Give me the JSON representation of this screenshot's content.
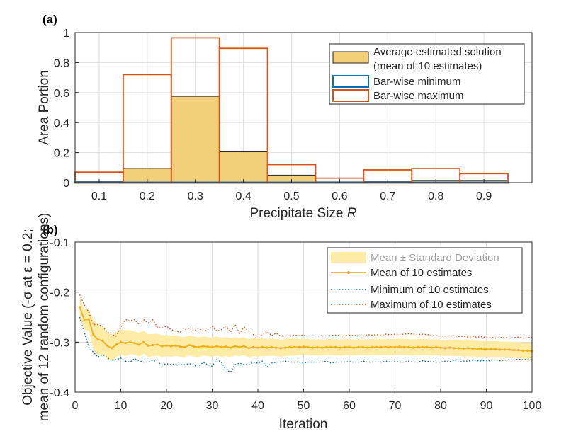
{
  "chart_data": [
    {
      "panel": "(a)",
      "type": "bar",
      "xlabel_prefix": "Precipitate Size ",
      "xlabel_var": "R",
      "ylabel": "Area Portion",
      "xlim": [
        0.05,
        1.0
      ],
      "ylim": [
        0,
        1
      ],
      "xticks": [
        0.1,
        0.2,
        0.3,
        0.4,
        0.5,
        0.6,
        0.7,
        0.8,
        0.9
      ],
      "xtick_labels": [
        "0.1",
        "0.2",
        "0.3",
        "0.4",
        "0.5",
        "0.6",
        "0.7",
        "0.8",
        "0.9"
      ],
      "yticks": [
        0,
        0.2,
        0.4,
        0.6,
        0.8,
        1
      ],
      "ytick_labels": [
        "0",
        "0.2",
        "0.4",
        "0.6",
        "0.8",
        "1"
      ],
      "categories": [
        0.1,
        0.2,
        0.3,
        0.4,
        0.5,
        0.6,
        0.7,
        0.8,
        0.9
      ],
      "bin_width": 0.1,
      "series": [
        {
          "name": "Average estimated solution (mean of 10 estimates)",
          "style": "filled",
          "values": [
            0.01,
            0.095,
            0.575,
            0.205,
            0.05,
            0.005,
            0.01,
            0.015,
            0.015
          ]
        },
        {
          "name": "Bar-wise minimum",
          "style": "outline",
          "values": [
            0.0,
            0.0,
            0.0,
            0.0,
            0.0,
            0.0,
            0.0,
            0.0,
            0.0
          ]
        },
        {
          "name": "Bar-wise maximum",
          "style": "outline",
          "values": [
            0.07,
            0.72,
            0.965,
            0.895,
            0.12,
            0.03,
            0.085,
            0.095,
            0.06
          ]
        }
      ],
      "legend": {
        "position": "top-right",
        "entries": [
          {
            "label": "Average estimated solution",
            "label2": "(mean of 10 estimates)"
          },
          {
            "label": "Bar-wise minimum"
          },
          {
            "label": "Bar-wise maximum"
          }
        ]
      },
      "colors": {
        "avg_fill": "#f2d07a",
        "avg_edge": "#262626",
        "min": "#0072bd",
        "max": "#d95319"
      }
    },
    {
      "panel": "(b)",
      "type": "line",
      "xlabel": "Iteration",
      "ylabel_line1": "Objective Value (-σ at ε = 0.2;",
      "ylabel_line2": "mean of 12 random configurations)",
      "xlim": [
        0,
        100
      ],
      "ylim": [
        -0.4,
        -0.1
      ],
      "xticks": [
        0,
        10,
        20,
        30,
        40,
        50,
        60,
        70,
        80,
        90,
        100
      ],
      "xtick_labels": [
        "0",
        "10",
        "20",
        "30",
        "40",
        "50",
        "60",
        "70",
        "80",
        "90",
        "100"
      ],
      "yticks": [
        -0.4,
        -0.3,
        -0.2,
        -0.1
      ],
      "ytick_labels": [
        "-0.4",
        "-0.3",
        "-0.2",
        "-0.1"
      ],
      "x": [
        1,
        2,
        3,
        4,
        5,
        6,
        7,
        8,
        9,
        10,
        11,
        12,
        13,
        14,
        15,
        16,
        17,
        18,
        19,
        20,
        21,
        22,
        23,
        24,
        25,
        26,
        27,
        28,
        29,
        30,
        31,
        32,
        33,
        34,
        35,
        36,
        37,
        38,
        39,
        40,
        41,
        42,
        43,
        44,
        45,
        46,
        47,
        48,
        49,
        50,
        51,
        52,
        53,
        54,
        55,
        56,
        57,
        58,
        59,
        60,
        61,
        62,
        63,
        64,
        65,
        66,
        67,
        68,
        69,
        70,
        71,
        72,
        73,
        74,
        75,
        76,
        77,
        78,
        79,
        80,
        81,
        82,
        83,
        84,
        85,
        86,
        87,
        88,
        89,
        90,
        91,
        92,
        93,
        94,
        95,
        96,
        97,
        98,
        99,
        100
      ],
      "series": [
        {
          "name": "Mean of 10 estimates",
          "values": [
            -0.23,
            -0.255,
            -0.255,
            -0.285,
            -0.295,
            -0.297,
            -0.307,
            -0.312,
            -0.305,
            -0.3,
            -0.302,
            -0.3,
            -0.302,
            -0.305,
            -0.3,
            -0.307,
            -0.306,
            -0.305,
            -0.308,
            -0.307,
            -0.308,
            -0.307,
            -0.309,
            -0.31,
            -0.306,
            -0.309,
            -0.31,
            -0.308,
            -0.309,
            -0.31,
            -0.308,
            -0.31,
            -0.309,
            -0.311,
            -0.308,
            -0.31,
            -0.308,
            -0.312,
            -0.31,
            -0.311,
            -0.31,
            -0.311,
            -0.31,
            -0.311,
            -0.312,
            -0.311,
            -0.31,
            -0.31,
            -0.31,
            -0.309,
            -0.31,
            -0.311,
            -0.31,
            -0.311,
            -0.31,
            -0.31,
            -0.31,
            -0.311,
            -0.31,
            -0.31,
            -0.311,
            -0.31,
            -0.31,
            -0.311,
            -0.31,
            -0.31,
            -0.31,
            -0.31,
            -0.31,
            -0.31,
            -0.309,
            -0.31,
            -0.31,
            -0.311,
            -0.31,
            -0.31,
            -0.31,
            -0.311,
            -0.31,
            -0.311,
            -0.312,
            -0.311,
            -0.312,
            -0.312,
            -0.313,
            -0.312,
            -0.313,
            -0.313,
            -0.314,
            -0.314,
            -0.314,
            -0.314,
            -0.315,
            -0.315,
            -0.315,
            -0.316,
            -0.316,
            -0.317,
            -0.317,
            -0.318
          ]
        },
        {
          "name": "Minimum of 10 estimates",
          "values": [
            -0.25,
            -0.28,
            -0.31,
            -0.32,
            -0.33,
            -0.325,
            -0.33,
            -0.338,
            -0.335,
            -0.332,
            -0.338,
            -0.34,
            -0.333,
            -0.337,
            -0.34,
            -0.34,
            -0.336,
            -0.34,
            -0.345,
            -0.343,
            -0.345,
            -0.344,
            -0.345,
            -0.345,
            -0.343,
            -0.346,
            -0.35,
            -0.34,
            -0.345,
            -0.348,
            -0.335,
            -0.34,
            -0.355,
            -0.36,
            -0.345,
            -0.342,
            -0.345,
            -0.345,
            -0.34,
            -0.342,
            -0.338,
            -0.35,
            -0.342,
            -0.34,
            -0.34,
            -0.338,
            -0.34,
            -0.34,
            -0.34,
            -0.342,
            -0.34,
            -0.34,
            -0.34,
            -0.34,
            -0.338,
            -0.342,
            -0.34,
            -0.34,
            -0.34,
            -0.339,
            -0.34,
            -0.34,
            -0.338,
            -0.34,
            -0.34,
            -0.339,
            -0.34,
            -0.338,
            -0.34,
            -0.338,
            -0.34,
            -0.34,
            -0.338,
            -0.34,
            -0.34,
            -0.337,
            -0.339,
            -0.338,
            -0.34,
            -0.34,
            -0.338,
            -0.339,
            -0.336,
            -0.34,
            -0.338,
            -0.338,
            -0.336,
            -0.337,
            -0.338,
            -0.336,
            -0.338,
            -0.335,
            -0.337,
            -0.336,
            -0.335,
            -0.336,
            -0.334,
            -0.335,
            -0.334,
            -0.335
          ]
        },
        {
          "name": "Maximum of 10 estimates",
          "values": [
            -0.205,
            -0.225,
            -0.24,
            -0.265,
            -0.265,
            -0.268,
            -0.28,
            -0.285,
            -0.288,
            -0.27,
            -0.255,
            -0.258,
            -0.255,
            -0.265,
            -0.255,
            -0.262,
            -0.255,
            -0.27,
            -0.272,
            -0.268,
            -0.275,
            -0.278,
            -0.28,
            -0.275,
            -0.272,
            -0.278,
            -0.272,
            -0.278,
            -0.275,
            -0.268,
            -0.278,
            -0.275,
            -0.268,
            -0.28,
            -0.265,
            -0.282,
            -0.27,
            -0.278,
            -0.285,
            -0.288,
            -0.285,
            -0.278,
            -0.287,
            -0.282,
            -0.288,
            -0.287,
            -0.288,
            -0.286,
            -0.287,
            -0.286,
            -0.288,
            -0.287,
            -0.288,
            -0.287,
            -0.288,
            -0.287,
            -0.286,
            -0.287,
            -0.288,
            -0.286,
            -0.287,
            -0.286,
            -0.288,
            -0.285,
            -0.286,
            -0.285,
            -0.286,
            -0.284,
            -0.285,
            -0.284,
            -0.285,
            -0.284,
            -0.283,
            -0.284,
            -0.285,
            -0.284,
            -0.285,
            -0.286,
            -0.287,
            -0.288,
            -0.288,
            -0.288,
            -0.287,
            -0.289,
            -0.288,
            -0.29,
            -0.289,
            -0.29,
            -0.289,
            -0.291,
            -0.29,
            -0.292,
            -0.291,
            -0.29,
            -0.292,
            -0.291,
            -0.29,
            -0.292,
            -0.291,
            -0.29
          ]
        },
        {
          "name": "Mean ± Standard Deviation",
          "style": "band",
          "std": [
            0.022,
            0.02,
            0.022,
            0.03,
            0.03,
            0.028,
            0.027,
            0.026,
            0.025,
            0.025,
            0.026,
            0.024,
            0.023,
            0.024,
            0.023,
            0.023,
            0.022,
            0.022,
            0.022,
            0.021,
            0.021,
            0.021,
            0.02,
            0.02,
            0.02,
            0.02,
            0.02,
            0.019,
            0.019,
            0.019,
            0.019,
            0.019,
            0.019,
            0.019,
            0.018,
            0.018,
            0.018,
            0.018,
            0.018,
            0.018,
            0.018,
            0.017,
            0.017,
            0.017,
            0.017,
            0.017,
            0.017,
            0.017,
            0.016,
            0.016,
            0.016,
            0.016,
            0.016,
            0.016,
            0.016,
            0.016,
            0.016,
            0.016,
            0.016,
            0.016,
            0.016,
            0.016,
            0.016,
            0.016,
            0.016,
            0.016,
            0.016,
            0.016,
            0.016,
            0.016,
            0.016,
            0.016,
            0.016,
            0.016,
            0.016,
            0.016,
            0.016,
            0.016,
            0.016,
            0.016,
            0.016,
            0.016,
            0.016,
            0.016,
            0.016,
            0.016,
            0.016,
            0.016,
            0.016,
            0.016,
            0.016,
            0.016,
            0.016,
            0.016,
            0.016,
            0.016,
            0.016,
            0.016,
            0.016,
            0.016
          ]
        }
      ],
      "legend": {
        "position": "top-right",
        "entries": [
          {
            "label": "Mean ± Standard Deviation"
          },
          {
            "label": "Mean of 10 estimates"
          },
          {
            "label": "Minimum of 10 estimates"
          },
          {
            "label": "Maximum of 10 estimates"
          }
        ]
      },
      "colors": {
        "mean": "#edb120",
        "band": "#fdeba6",
        "min": "#0072bd",
        "max": "#d95319"
      }
    }
  ]
}
